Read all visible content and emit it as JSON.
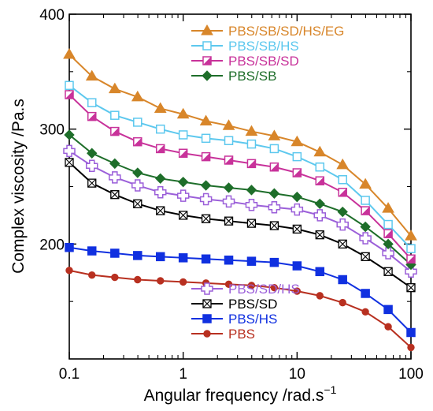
{
  "chart_data": {
    "type": "line",
    "title": "",
    "xlabel": "Angular frequency /rad.s",
    "xlabel_sup": "−1",
    "ylabel": "Complex viscosity /Pa.s",
    "xscale": "log",
    "xlim": [
      0.1,
      100
    ],
    "ylim": [
      100,
      400
    ],
    "x_ticks": [
      {
        "value": 0.1,
        "label": "0.1"
      },
      {
        "value": 1,
        "label": "1"
      },
      {
        "value": 10,
        "label": "10"
      },
      {
        "value": 100,
        "label": "100"
      }
    ],
    "y_ticks": [
      {
        "value": 200,
        "label": "200"
      },
      {
        "value": 300,
        "label": "300"
      },
      {
        "value": 400,
        "label": "400"
      }
    ],
    "grid": false,
    "x": [
      0.1,
      0.158,
      0.251,
      0.398,
      0.631,
      1.0,
      1.585,
      2.512,
      3.981,
      6.31,
      10.0,
      15.85,
      25.12,
      39.81,
      63.1,
      100.0
    ],
    "series": [
      {
        "name": "PBS/SB/SD/HS/EG",
        "color": "#D8862A",
        "marker": "triangle",
        "filled": true,
        "values": [
          365,
          346,
          335,
          328,
          318,
          313,
          307,
          303,
          298,
          294,
          289,
          280,
          269,
          252,
          231,
          207
        ]
      },
      {
        "name": "PBS/SB/HS",
        "color": "#5DC8EE",
        "marker": "square",
        "filled": false,
        "values": [
          338,
          323,
          312,
          306,
          300,
          295,
          292,
          290,
          287,
          283,
          276,
          267,
          256,
          238,
          217,
          196
        ]
      },
      {
        "name": "PBS/SB/SD",
        "color": "#C8329A",
        "marker": "square-half",
        "filled": true,
        "values": [
          330,
          311,
          298,
          289,
          283,
          279,
          276,
          273,
          270,
          267,
          262,
          255,
          245,
          229,
          209,
          187
        ]
      },
      {
        "name": "PBS/SB",
        "color": "#1E6E2A",
        "marker": "diamond",
        "filled": true,
        "values": [
          295,
          279,
          270,
          262,
          257,
          254,
          251,
          249,
          247,
          244,
          241,
          235,
          228,
          215,
          200,
          182
        ]
      },
      {
        "name": "PBS/SD/HS",
        "color": "#9B5FD9",
        "marker": "cross",
        "filled": false,
        "values": [
          281,
          268,
          258,
          251,
          245,
          242,
          239,
          237,
          234,
          232,
          230,
          225,
          217,
          205,
          192,
          176
        ]
      },
      {
        "name": "PBS/SD",
        "color": "#000000",
        "marker": "square-x",
        "filled": false,
        "values": [
          271,
          253,
          243,
          235,
          229,
          225,
          222,
          220,
          218,
          216,
          213,
          208,
          200,
          189,
          176,
          162
        ]
      },
      {
        "name": "PBS/HS",
        "color": "#1030E0",
        "marker": "square",
        "filled": true,
        "values": [
          197,
          194,
          192,
          190,
          189,
          188,
          187,
          186,
          185,
          184,
          181,
          176,
          169,
          157,
          143,
          123
        ]
      },
      {
        "name": "PBS",
        "color": "#B83020",
        "marker": "circle",
        "filled": true,
        "values": [
          177,
          173,
          171,
          169,
          168,
          167,
          166,
          165,
          164,
          162,
          159,
          155,
          149,
          141,
          128,
          110
        ]
      }
    ],
    "legend_groups": [
      {
        "placement": "top-center",
        "series": [
          "PBS/SB/SD/HS/EG",
          "PBS/SB/HS",
          "PBS/SB/SD",
          "PBS/SB"
        ]
      },
      {
        "placement": "bottom-center",
        "series": [
          "PBS/SD/HS",
          "PBS/SD",
          "PBS/HS",
          "PBS"
        ]
      }
    ]
  }
}
